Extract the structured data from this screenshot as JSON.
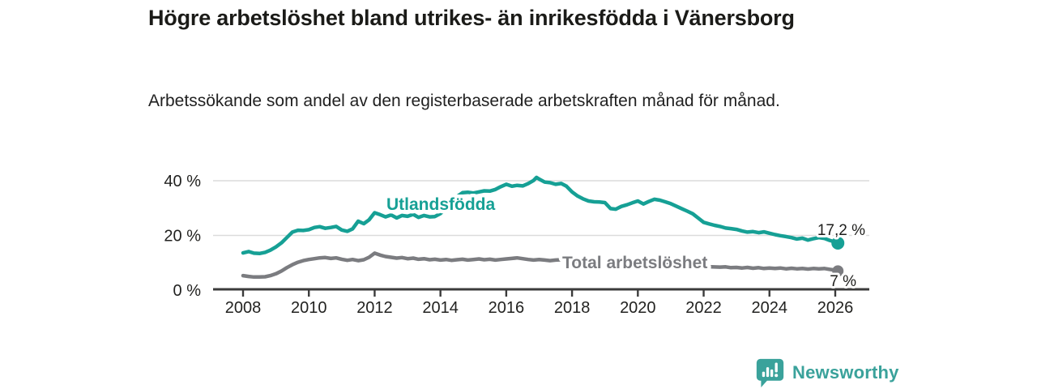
{
  "header": {
    "title": "Högre arbetslöshet bland utrikes- än inrikesfödda i Vänersborg",
    "subtitle": "Arbetssökande som andel av den registerbaserade arbetskraften månad för månad."
  },
  "chart_data": {
    "type": "line",
    "title": "Högre arbetslöshet bland utrikes- än inrikesfödda i Vänersborg",
    "subtitle": "Arbetssökande som andel av den registerbaserade arbetskraften månad för månad.",
    "xlabel": "",
    "ylabel": "",
    "unit": "%",
    "grid": "horizontal",
    "legend_position": "inline-on-line",
    "x_ticks": [
      2008,
      2010,
      2012,
      2014,
      2016,
      2018,
      2020,
      2022,
      2024,
      2026
    ],
    "y_ticks": [
      {
        "value": 0,
        "label": "0 %"
      },
      {
        "value": 20,
        "label": "20 %"
      },
      {
        "value": 40,
        "label": "40 %"
      }
    ],
    "x_range": [
      2007.1,
      2027.1
    ],
    "y_range": [
      0,
      44
    ],
    "series": [
      {
        "name": "Utlandsfödda",
        "color": "#16a095",
        "end_value": 17.2,
        "end_label": "17,2 %",
        "points": [
          [
            2008.0,
            13.6
          ],
          [
            2008.17,
            14.1
          ],
          [
            2008.33,
            13.5
          ],
          [
            2008.5,
            13.4
          ],
          [
            2008.67,
            13.8
          ],
          [
            2008.83,
            14.6
          ],
          [
            2009.0,
            15.8
          ],
          [
            2009.17,
            17.3
          ],
          [
            2009.33,
            19.2
          ],
          [
            2009.5,
            21.2
          ],
          [
            2009.67,
            21.9
          ],
          [
            2009.83,
            21.8
          ],
          [
            2010.0,
            22.1
          ],
          [
            2010.17,
            22.9
          ],
          [
            2010.33,
            23.2
          ],
          [
            2010.5,
            22.6
          ],
          [
            2010.67,
            22.9
          ],
          [
            2010.83,
            23.3
          ],
          [
            2011.0,
            22.0
          ],
          [
            2011.17,
            21.5
          ],
          [
            2011.33,
            22.4
          ],
          [
            2011.5,
            25.2
          ],
          [
            2011.67,
            24.3
          ],
          [
            2011.83,
            25.7
          ],
          [
            2012.0,
            28.3
          ],
          [
            2012.17,
            27.6
          ],
          [
            2012.33,
            26.8
          ],
          [
            2012.5,
            27.5
          ],
          [
            2012.67,
            26.4
          ],
          [
            2012.83,
            27.3
          ],
          [
            2013.0,
            27.0
          ],
          [
            2013.17,
            27.7
          ],
          [
            2013.33,
            26.6
          ],
          [
            2013.5,
            27.3
          ],
          [
            2013.67,
            26.8
          ],
          [
            2013.83,
            26.9
          ],
          [
            2014.0,
            28.0
          ],
          [
            2014.17,
            29.8
          ],
          [
            2014.33,
            32.0
          ],
          [
            2014.5,
            34.2
          ],
          [
            2014.67,
            35.6
          ],
          [
            2014.83,
            35.8
          ],
          [
            2015.0,
            35.5
          ],
          [
            2015.17,
            35.9
          ],
          [
            2015.33,
            36.3
          ],
          [
            2015.5,
            36.2
          ],
          [
            2015.67,
            36.8
          ],
          [
            2015.83,
            37.8
          ],
          [
            2016.0,
            38.7
          ],
          [
            2016.17,
            38.0
          ],
          [
            2016.33,
            38.3
          ],
          [
            2016.5,
            38.1
          ],
          [
            2016.67,
            39.0
          ],
          [
            2016.83,
            40.1
          ],
          [
            2016.92,
            41.2
          ],
          [
            2017.0,
            40.6
          ],
          [
            2017.17,
            39.5
          ],
          [
            2017.33,
            39.3
          ],
          [
            2017.5,
            38.7
          ],
          [
            2017.67,
            39.0
          ],
          [
            2017.83,
            38.0
          ],
          [
            2018.0,
            35.9
          ],
          [
            2018.17,
            34.4
          ],
          [
            2018.33,
            33.4
          ],
          [
            2018.5,
            32.6
          ],
          [
            2018.67,
            32.3
          ],
          [
            2018.83,
            32.2
          ],
          [
            2019.0,
            32.0
          ],
          [
            2019.17,
            29.8
          ],
          [
            2019.33,
            29.6
          ],
          [
            2019.5,
            30.6
          ],
          [
            2019.67,
            31.2
          ],
          [
            2019.83,
            31.9
          ],
          [
            2020.0,
            32.6
          ],
          [
            2020.17,
            31.5
          ],
          [
            2020.33,
            32.4
          ],
          [
            2020.5,
            33.2
          ],
          [
            2020.67,
            32.9
          ],
          [
            2020.83,
            32.3
          ],
          [
            2021.0,
            31.6
          ],
          [
            2021.17,
            30.7
          ],
          [
            2021.33,
            29.8
          ],
          [
            2021.5,
            28.9
          ],
          [
            2021.67,
            27.9
          ],
          [
            2021.83,
            26.4
          ],
          [
            2022.0,
            24.8
          ],
          [
            2022.17,
            24.2
          ],
          [
            2022.33,
            23.7
          ],
          [
            2022.5,
            23.3
          ],
          [
            2022.67,
            22.7
          ],
          [
            2022.83,
            22.5
          ],
          [
            2023.0,
            22.2
          ],
          [
            2023.17,
            21.6
          ],
          [
            2023.33,
            21.2
          ],
          [
            2023.5,
            21.4
          ],
          [
            2023.67,
            21.0
          ],
          [
            2023.83,
            21.3
          ],
          [
            2024.0,
            20.8
          ],
          [
            2024.17,
            20.3
          ],
          [
            2024.33,
            19.9
          ],
          [
            2024.5,
            19.6
          ],
          [
            2024.67,
            19.2
          ],
          [
            2024.83,
            18.7
          ],
          [
            2025.0,
            19.0
          ],
          [
            2025.17,
            18.3
          ],
          [
            2025.33,
            18.8
          ],
          [
            2025.5,
            19.2
          ],
          [
            2025.67,
            18.9
          ],
          [
            2025.83,
            18.2
          ],
          [
            2026.0,
            17.6
          ],
          [
            2026.08,
            17.2
          ]
        ]
      },
      {
        "name": "Total arbetslöshet",
        "color": "#7b7c80",
        "end_value": 7.0,
        "end_label": "7 %",
        "points": [
          [
            2008.0,
            5.3
          ],
          [
            2008.17,
            5.0
          ],
          [
            2008.33,
            4.8
          ],
          [
            2008.5,
            4.8
          ],
          [
            2008.67,
            4.9
          ],
          [
            2008.83,
            5.3
          ],
          [
            2009.0,
            6.0
          ],
          [
            2009.17,
            7.0
          ],
          [
            2009.33,
            8.2
          ],
          [
            2009.5,
            9.3
          ],
          [
            2009.67,
            10.2
          ],
          [
            2009.83,
            10.8
          ],
          [
            2010.0,
            11.2
          ],
          [
            2010.17,
            11.5
          ],
          [
            2010.33,
            11.8
          ],
          [
            2010.5,
            11.9
          ],
          [
            2010.67,
            11.6
          ],
          [
            2010.83,
            11.8
          ],
          [
            2011.0,
            11.3
          ],
          [
            2011.17,
            10.9
          ],
          [
            2011.33,
            11.2
          ],
          [
            2011.5,
            10.8
          ],
          [
            2011.67,
            11.1
          ],
          [
            2011.83,
            12.0
          ],
          [
            2012.0,
            13.5
          ],
          [
            2012.17,
            12.8
          ],
          [
            2012.33,
            12.3
          ],
          [
            2012.5,
            12.0
          ],
          [
            2012.67,
            11.7
          ],
          [
            2012.83,
            11.9
          ],
          [
            2013.0,
            11.5
          ],
          [
            2013.17,
            11.7
          ],
          [
            2013.33,
            11.3
          ],
          [
            2013.5,
            11.5
          ],
          [
            2013.67,
            11.1
          ],
          [
            2013.83,
            11.3
          ],
          [
            2014.0,
            11.0
          ],
          [
            2014.17,
            11.2
          ],
          [
            2014.33,
            10.9
          ],
          [
            2014.5,
            11.1
          ],
          [
            2014.67,
            11.3
          ],
          [
            2014.83,
            11.0
          ],
          [
            2015.0,
            11.2
          ],
          [
            2015.17,
            11.4
          ],
          [
            2015.33,
            11.1
          ],
          [
            2015.5,
            11.3
          ],
          [
            2015.67,
            11.0
          ],
          [
            2015.83,
            11.2
          ],
          [
            2016.0,
            11.4
          ],
          [
            2016.17,
            11.6
          ],
          [
            2016.33,
            11.8
          ],
          [
            2016.5,
            11.5
          ],
          [
            2016.67,
            11.2
          ],
          [
            2016.83,
            11.0
          ],
          [
            2017.0,
            11.2
          ],
          [
            2017.17,
            11.0
          ],
          [
            2017.33,
            10.8
          ],
          [
            2017.5,
            11.0
          ],
          [
            2017.67,
            11.1
          ],
          [
            2017.83,
            10.9
          ],
          [
            2018.0,
            10.7
          ],
          [
            2018.25,
            10.3
          ],
          [
            2018.5,
            10.1
          ],
          [
            2018.75,
            9.9
          ],
          [
            2019.0,
            9.7
          ],
          [
            2019.25,
            9.5
          ],
          [
            2019.5,
            9.4
          ],
          [
            2019.75,
            9.6
          ],
          [
            2020.0,
            10.0
          ],
          [
            2020.25,
            10.4
          ],
          [
            2020.5,
            10.3
          ],
          [
            2020.75,
            10.0
          ],
          [
            2021.0,
            9.6
          ],
          [
            2021.25,
            9.2
          ],
          [
            2021.5,
            8.9
          ],
          [
            2021.75,
            8.7
          ],
          [
            2022.0,
            8.6
          ],
          [
            2022.25,
            8.5
          ],
          [
            2022.5,
            8.4
          ],
          [
            2022.67,
            8.5
          ],
          [
            2022.83,
            8.2
          ],
          [
            2023.0,
            8.3
          ],
          [
            2023.17,
            8.1
          ],
          [
            2023.33,
            8.3
          ],
          [
            2023.5,
            8.0
          ],
          [
            2023.67,
            8.2
          ],
          [
            2023.83,
            7.9
          ],
          [
            2024.0,
            8.1
          ],
          [
            2024.17,
            7.9
          ],
          [
            2024.33,
            8.1
          ],
          [
            2024.5,
            7.8
          ],
          [
            2024.67,
            8.0
          ],
          [
            2024.83,
            7.8
          ],
          [
            2025.0,
            7.9
          ],
          [
            2025.17,
            7.7
          ],
          [
            2025.33,
            7.9
          ],
          [
            2025.5,
            7.8
          ],
          [
            2025.67,
            7.9
          ],
          [
            2025.83,
            7.6
          ],
          [
            2026.0,
            7.3
          ],
          [
            2026.08,
            7.0
          ]
        ]
      }
    ]
  },
  "colors": {
    "accent_teal": "#16a095",
    "series_gray": "#7b7c80",
    "axis": "#3b3b3b",
    "gridline": "#dcdcdc",
    "text_dark": "#1d1d1b",
    "logo_teal": "#3aa29b"
  },
  "footer": {
    "brand": "Newsworthy"
  }
}
